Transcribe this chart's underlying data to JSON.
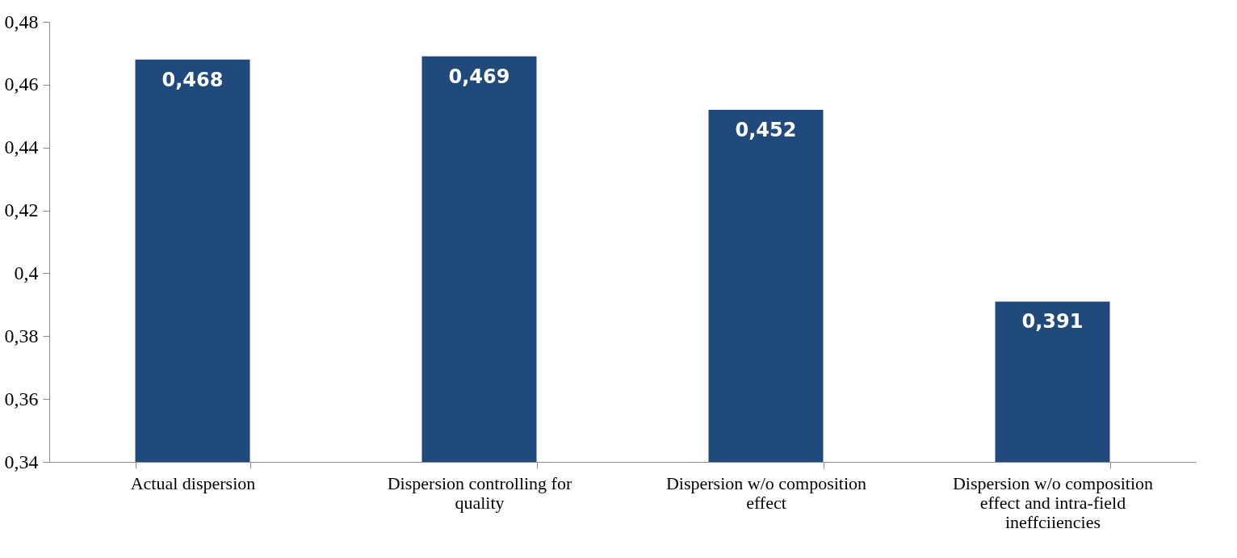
{
  "chart_data": {
    "type": "bar",
    "categories": [
      "Actual dispersion",
      "Dispersion controlling for quality",
      "Dispersion w/o composition effect",
      "Dispersion w/o composition effect and intra-field ineffciiencies"
    ],
    "values": [
      0.468,
      0.469,
      0.452,
      0.391
    ],
    "value_labels": [
      "0,468",
      "0,469",
      "0,452",
      "0,391"
    ],
    "color": "#214a7c",
    "ylim": [
      0.34,
      0.48
    ],
    "yticks": [
      {
        "value": 0.34,
        "label": "0,34"
      },
      {
        "value": 0.36,
        "label": "0,36"
      },
      {
        "value": 0.38,
        "label": "0,38"
      },
      {
        "value": 0.4,
        "label": "0,4"
      },
      {
        "value": 0.42,
        "label": "0,42"
      },
      {
        "value": 0.44,
        "label": "0,44"
      },
      {
        "value": 0.46,
        "label": "0,46"
      },
      {
        "value": 0.48,
        "label": "0,48"
      }
    ],
    "grid": false
  }
}
